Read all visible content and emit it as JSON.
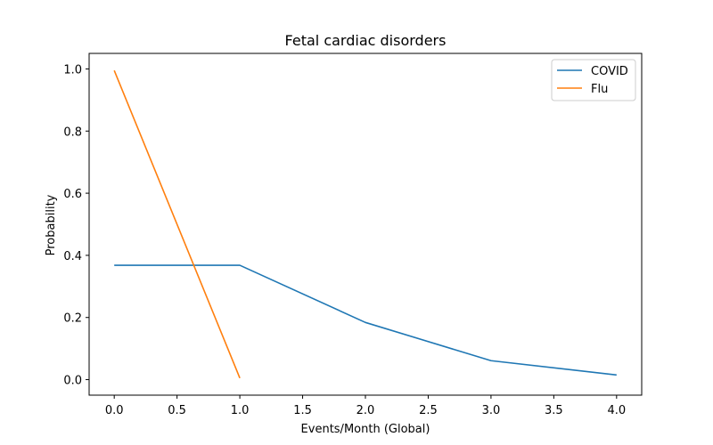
{
  "chart_data": {
    "type": "line",
    "title": "Fetal cardiac disorders",
    "xlabel": "Events/Month (Global)",
    "ylabel": "Probability",
    "xlim": [
      -0.2,
      4.2
    ],
    "ylim": [
      -0.05,
      1.05
    ],
    "xticks": [
      "0.0",
      "0.5",
      "1.0",
      "1.5",
      "2.0",
      "2.5",
      "3.0",
      "3.5",
      "4.0"
    ],
    "yticks": [
      "0.0",
      "0.2",
      "0.4",
      "0.6",
      "0.8",
      "1.0"
    ],
    "grid": false,
    "legend_position": "top-right",
    "series": [
      {
        "name": "COVID",
        "color": "#1f77b4",
        "x": [
          0,
          1,
          2,
          3,
          4
        ],
        "y": [
          0.368,
          0.368,
          0.184,
          0.061,
          0.015
        ]
      },
      {
        "name": "Flu",
        "color": "#ff7f0e",
        "x": [
          0,
          1
        ],
        "y": [
          0.995,
          0.005
        ]
      }
    ]
  }
}
